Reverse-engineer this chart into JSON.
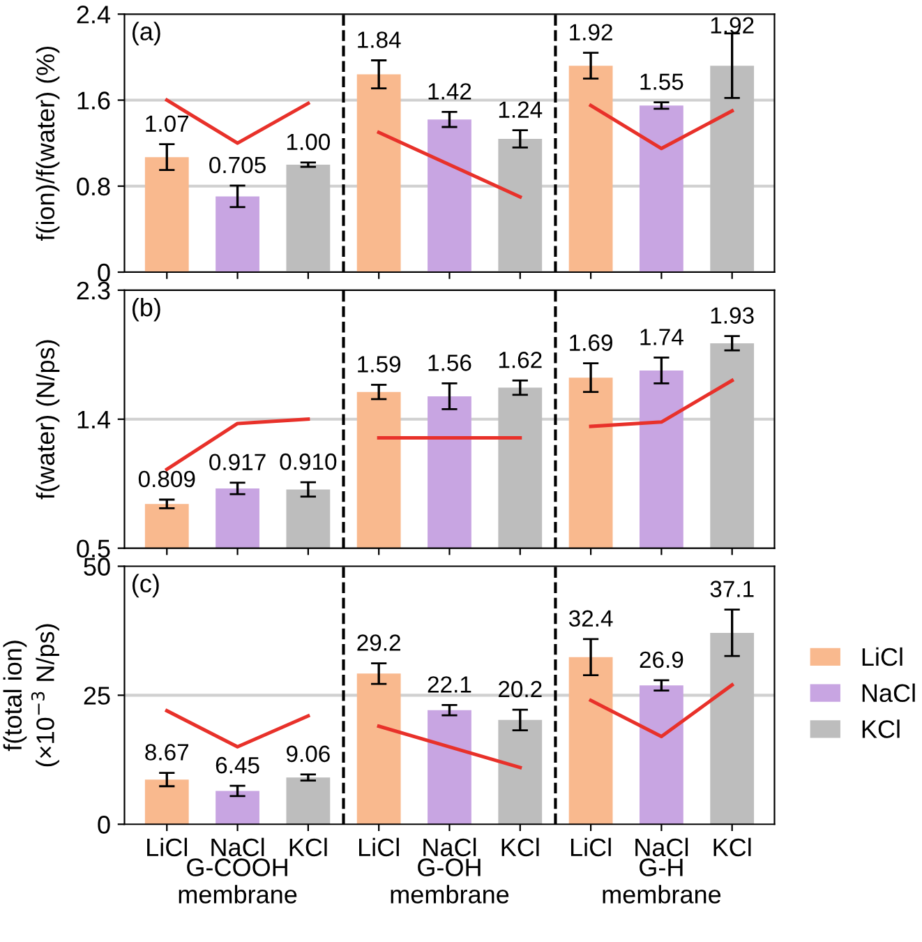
{
  "chart_data": [
    {
      "type": "bar",
      "title": "(a)",
      "ylabel": "f(ion)/f(water) (%)",
      "categories": [
        null,
        null,
        null,
        null,
        null,
        null,
        null,
        null,
        null
      ],
      "series": [
        {
          "color": "#f9b98e",
          "values": [
            1.07,
            null,
            null,
            1.84,
            null,
            null,
            1.92,
            null,
            null
          ],
          "errors": [
            0.12,
            null,
            null,
            0.13,
            null,
            null,
            0.12,
            null,
            null
          ],
          "value_labels": [
            "1.07",
            null,
            null,
            "1.84",
            null,
            null,
            "1.92",
            null,
            null
          ]
        },
        {
          "color": "#c8a5e2",
          "values": [
            null,
            0.705,
            null,
            null,
            1.42,
            null,
            null,
            1.55,
            null
          ],
          "errors": [
            null,
            0.1,
            null,
            null,
            0.07,
            null,
            null,
            0.03,
            null
          ],
          "value_labels": [
            null,
            "0.705",
            null,
            null,
            "1.42",
            null,
            null,
            "1.55",
            null
          ]
        },
        {
          "color": "#bdbdbd",
          "values": [
            null,
            null,
            1.0,
            null,
            null,
            1.24,
            null,
            null,
            1.92
          ],
          "errors": [
            null,
            null,
            0.02,
            null,
            null,
            0.08,
            null,
            null,
            0.3
          ],
          "value_labels": [
            null,
            null,
            "1.00",
            null,
            null,
            "1.24",
            null,
            null,
            "1.92"
          ]
        },
        {
          "type": "line",
          "color": "#e8312a",
          "values": [
            1.6,
            1.2,
            1.57,
            null,
            null,
            null,
            null,
            null,
            null
          ]
        },
        {
          "type": "line",
          "color": "#e8312a",
          "values": [
            null,
            null,
            null,
            1.3,
            1.0,
            0.7,
            null,
            null,
            null
          ]
        },
        {
          "type": "line",
          "color": "#e8312a",
          "values": [
            null,
            null,
            null,
            null,
            null,
            null,
            1.55,
            1.15,
            1.5
          ]
        }
      ],
      "ylim": [
        0,
        2.4
      ],
      "yticks": [
        0,
        0.8,
        1.6,
        2.4
      ],
      "grid": "y",
      "tick_labels": "y"
    },
    {
      "type": "bar",
      "title": "(b)",
      "ylabel": "f(water) (N/ps)",
      "categories": [
        null,
        null,
        null,
        null,
        null,
        null,
        null,
        null,
        null
      ],
      "series": [
        {
          "color": "#f9b98e",
          "values": [
            0.809,
            null,
            null,
            1.59,
            null,
            null,
            1.69,
            null,
            null
          ],
          "errors": [
            0.03,
            null,
            null,
            0.05,
            null,
            null,
            0.1,
            null,
            null
          ],
          "value_labels": [
            "0.809",
            null,
            null,
            "1.59",
            null,
            null,
            "1.69",
            null,
            null
          ]
        },
        {
          "color": "#c8a5e2",
          "values": [
            null,
            0.917,
            null,
            null,
            1.56,
            null,
            null,
            1.74,
            null
          ],
          "errors": [
            null,
            0.04,
            null,
            null,
            0.09,
            null,
            null,
            0.09,
            null
          ],
          "value_labels": [
            null,
            "0.917",
            null,
            null,
            "1.56",
            null,
            null,
            "1.74",
            null
          ]
        },
        {
          "color": "#bdbdbd",
          "values": [
            null,
            null,
            0.91,
            null,
            null,
            1.62,
            null,
            null,
            1.93
          ],
          "errors": [
            null,
            null,
            0.05,
            null,
            null,
            0.05,
            null,
            null,
            0.05
          ],
          "value_labels": [
            null,
            null,
            "0.910",
            null,
            null,
            "1.62",
            null,
            null,
            "1.93"
          ]
        },
        {
          "type": "line",
          "color": "#e8312a",
          "values": [
            1.05,
            1.37,
            1.4,
            null,
            null,
            null,
            null,
            null,
            null
          ]
        },
        {
          "type": "line",
          "color": "#e8312a",
          "values": [
            null,
            null,
            null,
            1.27,
            1.27,
            1.27,
            null,
            null,
            null
          ]
        },
        {
          "type": "line",
          "color": "#e8312a",
          "values": [
            null,
            null,
            null,
            null,
            null,
            null,
            1.35,
            1.38,
            1.67
          ]
        }
      ],
      "ylim": [
        0.5,
        2.3
      ],
      "yticks": [
        0.5,
        1.4,
        2.3
      ],
      "tick_labels": "y",
      "ref_lines": [
        {
          "axis": "y",
          "value": 1.4,
          "color": "#d0d0d0"
        }
      ]
    },
    {
      "type": "bar",
      "title": "(c)",
      "ylabel": "f(total ion)\n(×10$^{−3}$ N/ps)",
      "categories": [
        "LiCl",
        "NaCl",
        "KCl",
        "LiCl",
        "NaCl",
        "KCl",
        "LiCl",
        "NaCl",
        "KCl"
      ],
      "series": [
        {
          "name": "LiCl",
          "color": "#f9b98e",
          "values": [
            8.67,
            null,
            null,
            29.2,
            null,
            null,
            32.4,
            null,
            null
          ],
          "errors": [
            1.3,
            null,
            null,
            2.0,
            null,
            null,
            3.5,
            null,
            null
          ],
          "value_labels": [
            "8.67",
            null,
            null,
            "29.2",
            null,
            null,
            "32.4",
            null,
            null
          ]
        },
        {
          "name": "NaCl",
          "color": "#c8a5e2",
          "values": [
            null,
            6.45,
            null,
            null,
            22.1,
            null,
            null,
            26.9,
            null
          ],
          "errors": [
            null,
            1.0,
            null,
            null,
            1.0,
            null,
            null,
            1.0,
            null
          ],
          "value_labels": [
            null,
            "6.45",
            null,
            null,
            "22.1",
            null,
            null,
            "26.9",
            null
          ]
        },
        {
          "name": "KCl",
          "color": "#bdbdbd",
          "values": [
            null,
            null,
            9.06,
            null,
            null,
            20.2,
            null,
            null,
            37.1
          ],
          "errors": [
            null,
            null,
            0.6,
            null,
            null,
            2.0,
            null,
            null,
            4.5
          ],
          "value_labels": [
            null,
            null,
            "9.06",
            null,
            null,
            "20.2",
            null,
            null,
            "37.1"
          ]
        },
        {
          "type": "line",
          "color": "#e8312a",
          "values": [
            22,
            15,
            21,
            null,
            null,
            null,
            null,
            null,
            null
          ]
        },
        {
          "type": "line",
          "color": "#e8312a",
          "values": [
            null,
            null,
            null,
            19,
            15,
            11,
            null,
            null,
            null
          ]
        },
        {
          "type": "line",
          "color": "#e8312a",
          "values": [
            null,
            null,
            null,
            null,
            null,
            null,
            24,
            17,
            27
          ]
        }
      ],
      "ylim": [
        0,
        50
      ],
      "yticks": [
        0,
        25,
        50
      ],
      "legend": "right",
      "ref_lines": [
        {
          "axis": "y",
          "value": 25,
          "color": "#d0d0d0"
        }
      ],
      "annotations": [
        "G-COOH\nmembrane",
        "G-OH\nmembrane",
        "G-H\nmembrane"
      ]
    }
  ]
}
